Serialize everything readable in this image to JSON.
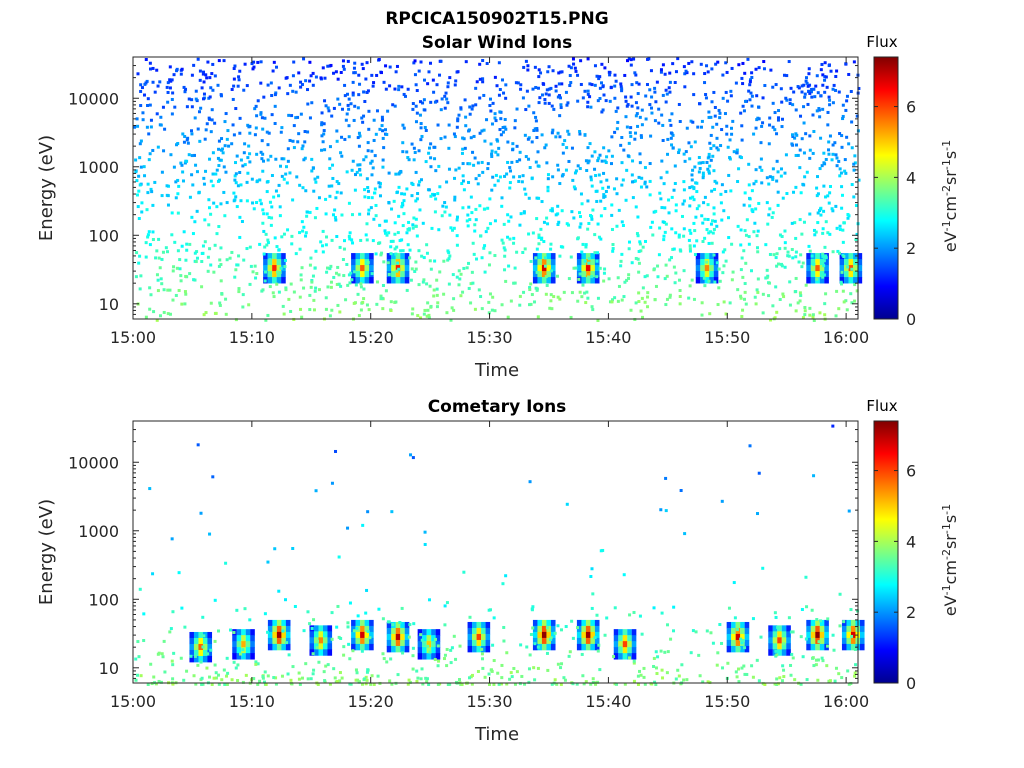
{
  "figure_title": "RPCICA150902T15.PNG",
  "chart_data": [
    {
      "type": "heatmap",
      "title": "Solar Wind Ions",
      "xlabel": "Time",
      "ylabel": "Energy (eV)",
      "x_ticks": [
        "15:00",
        "15:10",
        "15:20",
        "15:30",
        "15:40",
        "15:50",
        "16:00"
      ],
      "x_range": [
        "15:00",
        "16:01"
      ],
      "y_scale": "log",
      "y_ticks": [
        10,
        100,
        1000,
        10000
      ],
      "y_tick_labels": [
        "10",
        "100",
        "1000",
        "10000"
      ],
      "y_range": [
        6,
        40000
      ],
      "colorbar": {
        "label": "Flux",
        "unit": "eV-1cm-2sr-1s-1",
        "range": [
          0,
          7.4
        ],
        "ticks": [
          0,
          2,
          4,
          6
        ],
        "tick_labels": [
          "0",
          "2",
          "4",
          "6"
        ],
        "colormap": "jet"
      },
      "hot_spots": [
        {
          "time_min": 11.9,
          "energy_eV": 33,
          "flux": 6.2
        },
        {
          "time_min": 19.3,
          "energy_eV": 33,
          "flux": 5.8
        },
        {
          "time_min": 22.3,
          "energy_eV": 33,
          "flux": 6.3
        },
        {
          "time_min": 34.6,
          "energy_eV": 33,
          "flux": 6.8
        },
        {
          "time_min": 38.3,
          "energy_eV": 33,
          "flux": 6.6
        },
        {
          "time_min": 48.3,
          "energy_eV": 33,
          "flux": 5.5
        },
        {
          "time_min": 57.6,
          "energy_eV": 33,
          "flux": 5.8
        },
        {
          "time_min": 60.4,
          "energy_eV": 33,
          "flux": 5.9
        }
      ]
    },
    {
      "type": "heatmap",
      "title": "Cometary Ions",
      "xlabel": "Time",
      "ylabel": "Energy (eV)",
      "x_ticks": [
        "15:00",
        "15:10",
        "15:20",
        "15:30",
        "15:40",
        "15:50",
        "16:00"
      ],
      "x_range": [
        "15:00",
        "16:01"
      ],
      "y_scale": "log",
      "y_ticks": [
        10,
        100,
        1000,
        10000
      ],
      "y_tick_labels": [
        "10",
        "100",
        "1000",
        "10000"
      ],
      "y_range": [
        6,
        40000
      ],
      "colorbar": {
        "label": "Flux",
        "unit": "eV-1cm-2sr-1s-1",
        "range": [
          0,
          7.4
        ],
        "ticks": [
          0,
          2,
          4,
          6
        ],
        "tick_labels": [
          "0",
          "2",
          "4",
          "6"
        ],
        "colormap": "jet"
      },
      "hot_spots": [
        {
          "time_min": 5.7,
          "energy_eV": 20,
          "flux": 5.8
        },
        {
          "time_min": 9.3,
          "energy_eV": 22,
          "flux": 5.2
        },
        {
          "time_min": 12.3,
          "energy_eV": 30,
          "flux": 7.2
        },
        {
          "time_min": 15.8,
          "energy_eV": 25,
          "flux": 5.5
        },
        {
          "time_min": 19.3,
          "energy_eV": 30,
          "flux": 6.8
        },
        {
          "time_min": 22.3,
          "energy_eV": 28,
          "flux": 7.0
        },
        {
          "time_min": 24.9,
          "energy_eV": 22,
          "flux": 5.0
        },
        {
          "time_min": 29.1,
          "energy_eV": 28,
          "flux": 6.0
        },
        {
          "time_min": 34.6,
          "energy_eV": 30,
          "flux": 7.3
        },
        {
          "time_min": 38.3,
          "energy_eV": 30,
          "flux": 7.2
        },
        {
          "time_min": 41.4,
          "energy_eV": 22,
          "flux": 6.0
        },
        {
          "time_min": 50.9,
          "energy_eV": 28,
          "flux": 6.8
        },
        {
          "time_min": 54.4,
          "energy_eV": 25,
          "flux": 6.0
        },
        {
          "time_min": 57.6,
          "energy_eV": 30,
          "flux": 7.3
        },
        {
          "time_min": 60.6,
          "energy_eV": 30,
          "flux": 6.8
        }
      ]
    }
  ]
}
